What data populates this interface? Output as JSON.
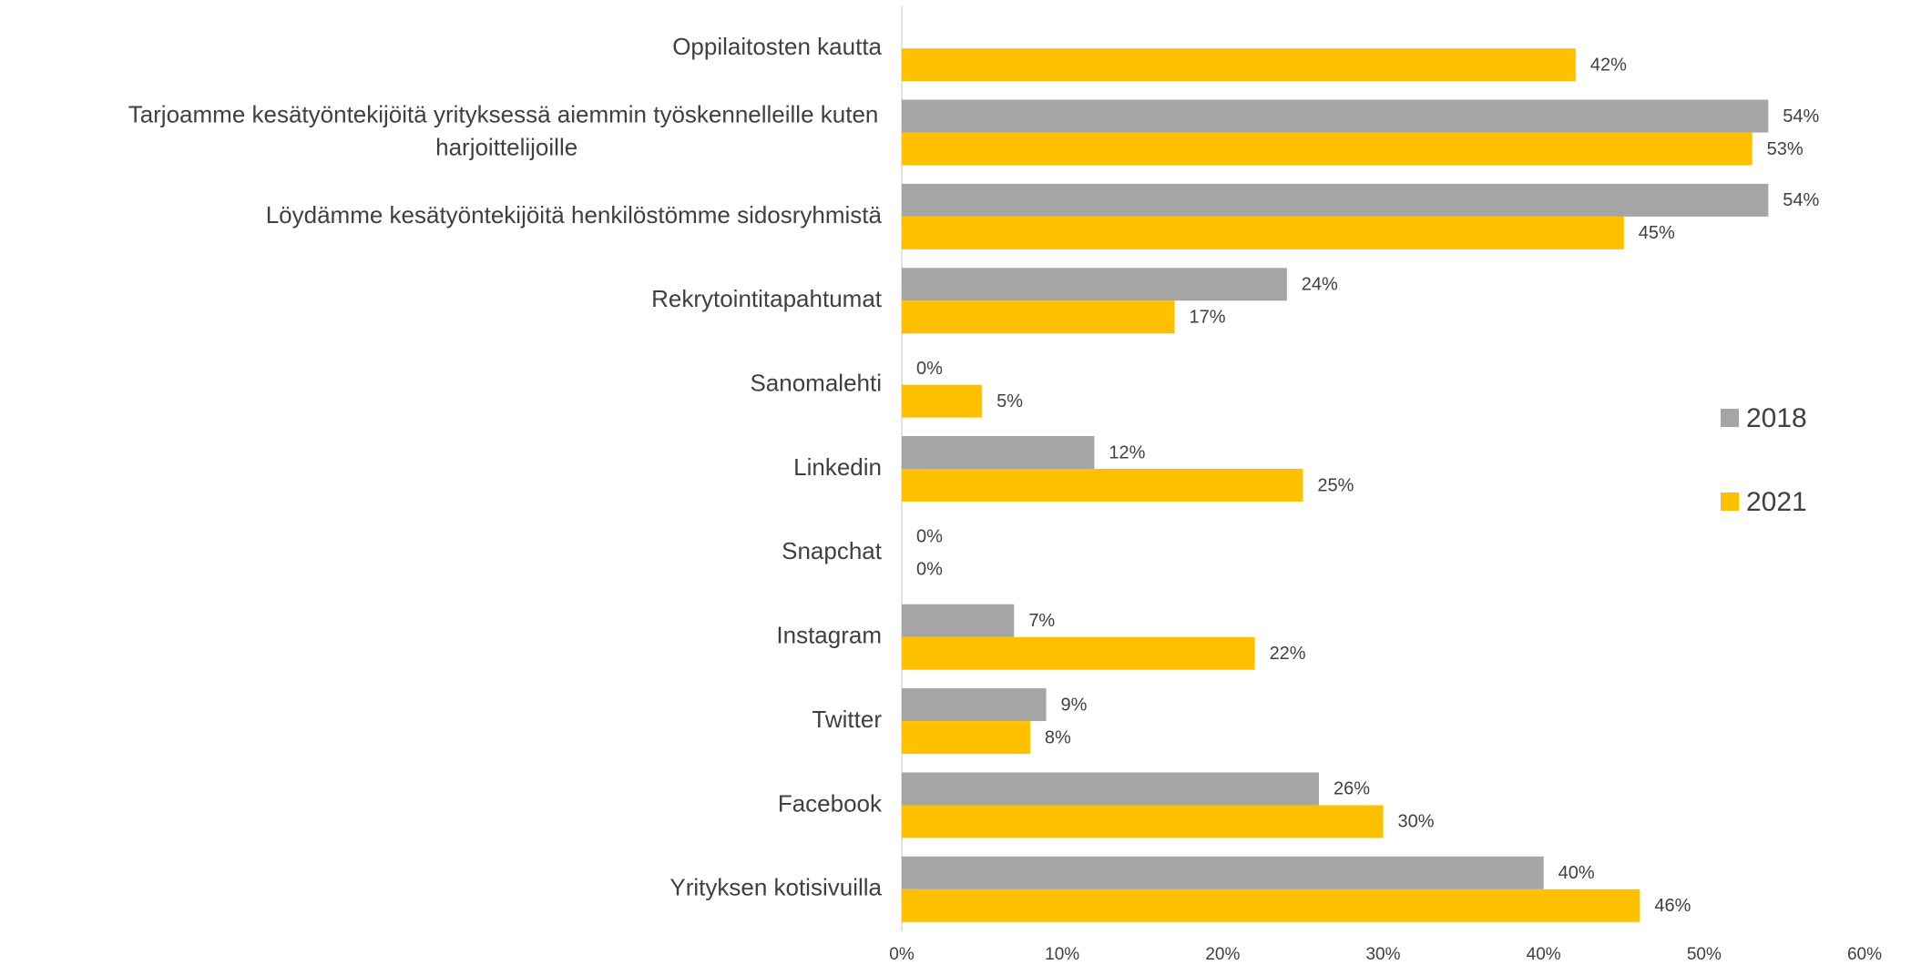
{
  "chart_data": {
    "type": "hbar",
    "categories": [
      "Oppilaitosten kautta",
      "Tarjoamme kesätyöntekijöitä yrityksessä aiemmin työskennelleille kuten harjoittelijoille",
      "Löydämme kesätyöntekijöitä henkilöstömme sidosryhmistä",
      "Rekrytointitapahtumat",
      "Sanomalehti",
      "Linkedin",
      "Snapchat",
      "Instagram",
      "Twitter",
      "Facebook",
      "Yrityksen kotisivuilla"
    ],
    "series": [
      {
        "name": "2018",
        "color": "#a5a5a5",
        "values": [
          null,
          54,
          54,
          24,
          0,
          12,
          0,
          7,
          9,
          26,
          40
        ],
        "value_labels": [
          null,
          "54%",
          "54%",
          "24%",
          "0%",
          "12%",
          "0%",
          "7%",
          "9%",
          "26%",
          "40%"
        ]
      },
      {
        "name": "2021",
        "color": "#ffc000",
        "values": [
          42,
          53,
          45,
          17,
          5,
          25,
          0,
          22,
          8,
          30,
          46
        ],
        "value_labels": [
          "42%",
          "53%",
          "45%",
          "17%",
          "5%",
          "25%",
          "0%",
          "22%",
          "8%",
          "30%",
          "46%"
        ]
      }
    ],
    "xlim": [
      0,
      60
    ],
    "xticks": [
      {
        "value": 0,
        "label": "0%"
      },
      {
        "value": 10,
        "label": "10%"
      },
      {
        "value": 20,
        "label": "20%"
      },
      {
        "value": 30,
        "label": "30%"
      },
      {
        "value": 40,
        "label": "40%"
      },
      {
        "value": 50,
        "label": "50%"
      },
      {
        "value": 60,
        "label": "60%"
      }
    ],
    "legend": "right"
  }
}
